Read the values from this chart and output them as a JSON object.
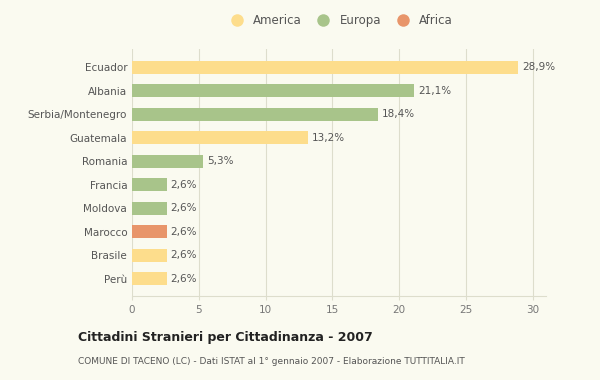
{
  "categories": [
    "Perù",
    "Brasile",
    "Marocco",
    "Moldova",
    "Francia",
    "Romania",
    "Guatemala",
    "Serbia/Montenegro",
    "Albania",
    "Ecuador"
  ],
  "values": [
    2.6,
    2.6,
    2.6,
    2.6,
    2.6,
    5.3,
    13.2,
    18.4,
    21.1,
    28.9
  ],
  "labels": [
    "2,6%",
    "2,6%",
    "2,6%",
    "2,6%",
    "2,6%",
    "5,3%",
    "13,2%",
    "18,4%",
    "21,1%",
    "28,9%"
  ],
  "colors": [
    "#FDDD8C",
    "#FDDD8C",
    "#E8956A",
    "#A8C48A",
    "#A8C48A",
    "#A8C48A",
    "#FDDD8C",
    "#A8C48A",
    "#A8C48A",
    "#FDDD8C"
  ],
  "legend_labels": [
    "America",
    "Europa",
    "Africa"
  ],
  "legend_colors": [
    "#FDDD8C",
    "#A8C48A",
    "#E8956A"
  ],
  "title": "Cittadini Stranieri per Cittadinanza - 2007",
  "subtitle": "COMUNE DI TACENO (LC) - Dati ISTAT al 1° gennaio 2007 - Elaborazione TUTTITALIA.IT",
  "xlim": [
    0,
    31
  ],
  "xticks": [
    0,
    5,
    10,
    15,
    20,
    25,
    30
  ],
  "background_color": "#FAFAF0",
  "grid_color": "#DDDDCC",
  "bar_height": 0.55
}
